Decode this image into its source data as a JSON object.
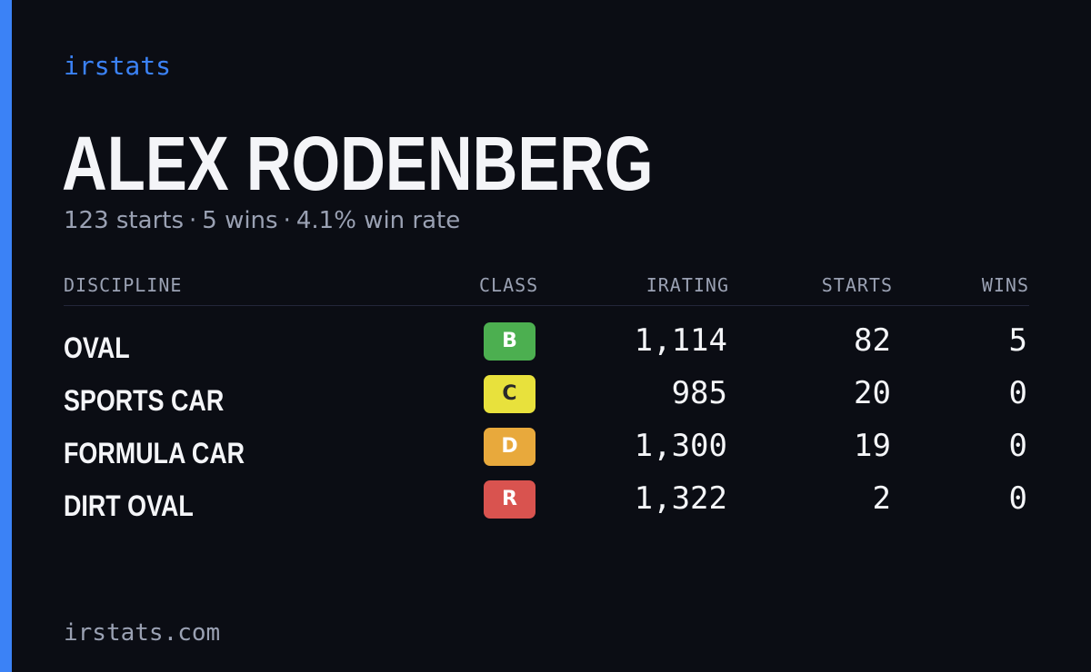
{
  "brand": "irstats",
  "driver": {
    "name": "ALEX RODENBERG",
    "summary": {
      "starts": "123 starts",
      "wins": "5 wins",
      "win_rate": "4.1% win rate",
      "separator": "·"
    }
  },
  "table": {
    "headers": {
      "discipline": "DISCIPLINE",
      "class": "CLASS",
      "irating": "IRATING",
      "starts": "STARTS",
      "wins": "WINS"
    },
    "rows": [
      {
        "discipline": "OVAL",
        "class": "B",
        "class_color": "#4caf50",
        "class_text_color": "#ffffff",
        "irating": "1,114",
        "starts": "82",
        "wins": "5"
      },
      {
        "discipline": "SPORTS CAR",
        "class": "C",
        "class_color": "#e8e13c",
        "class_text_color": "#2a2a2a",
        "irating": "985",
        "starts": "20",
        "wins": "0"
      },
      {
        "discipline": "FORMULA CAR",
        "class": "D",
        "class_color": "#e8a93c",
        "class_text_color": "#ffffff",
        "irating": "1,300",
        "starts": "19",
        "wins": "0"
      },
      {
        "discipline": "DIRT OVAL",
        "class": "R",
        "class_color": "#d9534f",
        "class_text_color": "#ffffff",
        "irating": "1,322",
        "starts": "2",
        "wins": "0"
      }
    ]
  },
  "footer": "irstats.com",
  "colors": {
    "background": "#0b0d14",
    "accent": "#3b82f6",
    "text_primary": "#f4f5f8",
    "text_muted": "#9aa1b3"
  }
}
